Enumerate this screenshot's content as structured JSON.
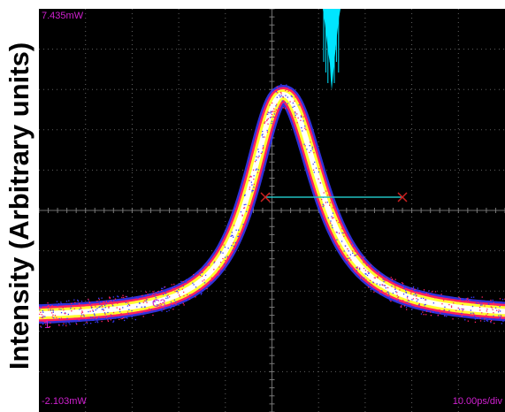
{
  "axis": {
    "y_label": "Intensity (Arbitrary units)"
  },
  "scope": {
    "top_label": "7.435mW",
    "bottom_label": "-2.103mW",
    "timebase_label": "10.00ps/div",
    "channel_label": "C3",
    "ground_marker": "1"
  },
  "colors": {
    "background": "#000000",
    "grid": "#7a7a7a",
    "trace_outer": "#3a3aff",
    "trace_mid": "#ff2060",
    "trace_core": "#ffff30",
    "trace_center": "#ffffff",
    "cursor": "#20c0c0",
    "marker": "#d02020",
    "histogram": "#00e5ff",
    "label": "#d020d0"
  }
}
